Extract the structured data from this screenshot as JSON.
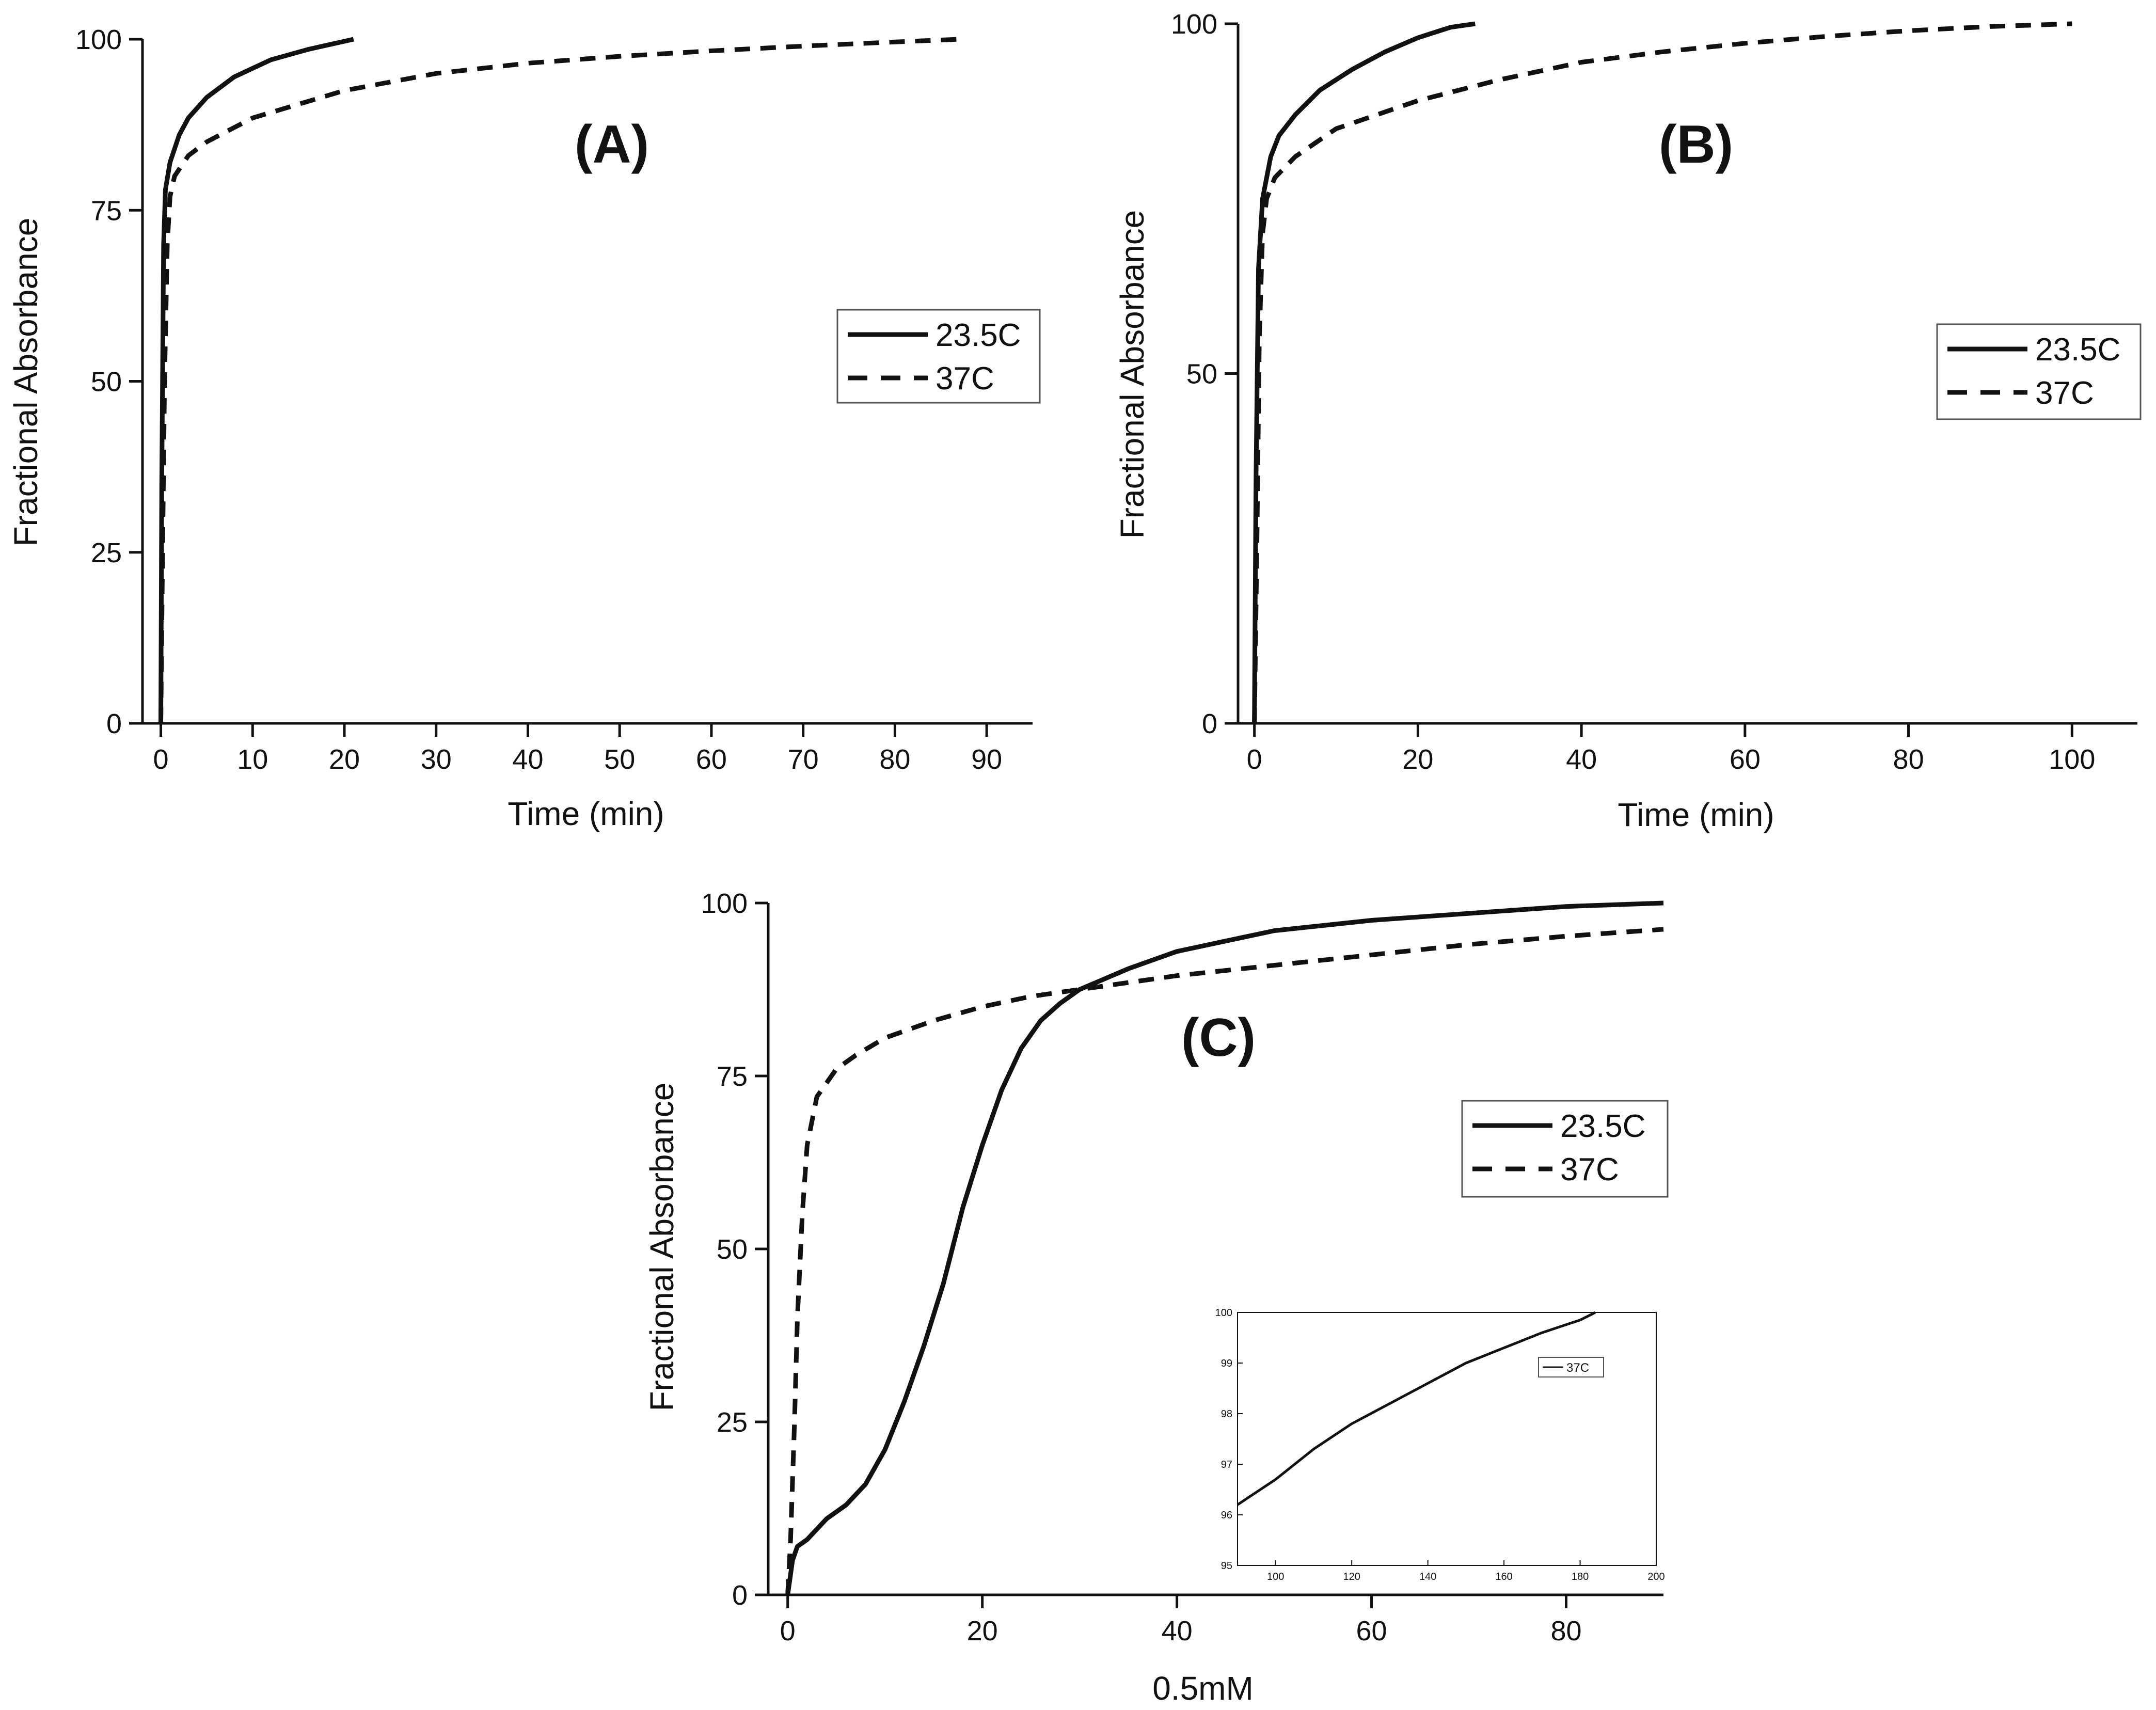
{
  "colors": {
    "line": "#111111",
    "background": "#ffffff",
    "legend_border": "#555555"
  },
  "chart_data": [
    {
      "type": "line",
      "panel": "A",
      "title": "(A)",
      "xlabel": "Time (min)",
      "ylabel": "Fractional Absorbance",
      "xlim": [
        -2,
        95
      ],
      "ylim": [
        0,
        100
      ],
      "xticks": [
        0,
        10,
        20,
        30,
        40,
        50,
        60,
        70,
        80,
        90
      ],
      "yticks": [
        0,
        25,
        50,
        75,
        100
      ],
      "legend": {
        "position": "center-right",
        "entries": [
          "23.5C",
          "37C"
        ]
      },
      "series": [
        {
          "name": "23.5C",
          "style": "solid",
          "x": [
            0,
            0.1,
            0.3,
            0.5,
            1,
            2,
            3,
            5,
            8,
            12,
            16,
            21
          ],
          "y": [
            0,
            35,
            70,
            78,
            82,
            86,
            88.5,
            91.5,
            94.5,
            97,
            98.5,
            100
          ]
        },
        {
          "name": "37C",
          "style": "dashed",
          "x": [
            0,
            0.15,
            0.4,
            0.7,
            1,
            1.5,
            3,
            5,
            10,
            20,
            30,
            40,
            50,
            60,
            70,
            80,
            87
          ],
          "y": [
            0,
            20,
            50,
            70,
            77,
            80,
            83,
            85,
            88.5,
            92.5,
            95,
            96.5,
            97.5,
            98.3,
            99,
            99.6,
            100
          ]
        }
      ]
    },
    {
      "type": "line",
      "panel": "B",
      "title": "(B)",
      "xlabel": "Time (min)",
      "ylabel": "Fractional Absorbance",
      "xlim": [
        -2,
        108
      ],
      "ylim": [
        0,
        100
      ],
      "xticks": [
        0,
        20,
        40,
        60,
        80,
        100
      ],
      "yticks": [
        0,
        50,
        100
      ],
      "legend": {
        "position": "center-right",
        "entries": [
          "23.5C",
          "37C"
        ]
      },
      "series": [
        {
          "name": "23.5C",
          "style": "solid",
          "x": [
            0,
            0.2,
            0.5,
            1,
            2,
            3,
            5,
            8,
            12,
            16,
            20,
            24,
            27
          ],
          "y": [
            0,
            35,
            65,
            75,
            81,
            84,
            87,
            90.5,
            93.5,
            96,
            98,
            99.5,
            100
          ]
        },
        {
          "name": "37C",
          "style": "dashed",
          "x": [
            0,
            0.3,
            0.6,
            1,
            1.5,
            2.5,
            5,
            10,
            20,
            30,
            40,
            50,
            60,
            70,
            80,
            90,
            100
          ],
          "y": [
            0,
            25,
            55,
            70,
            75,
            78,
            81,
            85,
            89,
            92,
            94.5,
            96,
            97.2,
            98.2,
            99,
            99.6,
            100
          ]
        }
      ]
    },
    {
      "type": "line",
      "panel": "C",
      "title": "(C)",
      "xlabel": "0.5mM",
      "ylabel": "Fractional Absorbance",
      "xlim": [
        -2,
        90
      ],
      "ylim": [
        0,
        100
      ],
      "xticks": [
        0,
        20,
        40,
        60,
        80
      ],
      "yticks": [
        0,
        25,
        50,
        75,
        100
      ],
      "legend": {
        "position": "center-right",
        "entries": [
          "23.5C",
          "37C"
        ]
      },
      "series": [
        {
          "name": "23.5C",
          "style": "solid",
          "x": [
            0,
            0.5,
            1,
            2,
            4,
            6,
            8,
            10,
            12,
            14,
            16,
            18,
            20,
            22,
            24,
            26,
            28,
            30,
            35,
            40,
            45,
            50,
            60,
            70,
            80,
            90
          ],
          "y": [
            0,
            5,
            7,
            8,
            11,
            13,
            16,
            21,
            28,
            36,
            45,
            56,
            65,
            73,
            79,
            83,
            85.5,
            87.5,
            90.5,
            93,
            94.5,
            96,
            97.5,
            98.5,
            99.5,
            100
          ]
        },
        {
          "name": "37C",
          "style": "dashed",
          "x": [
            0,
            0.3,
            0.7,
            1,
            1.5,
            2,
            3,
            5,
            7,
            10,
            15,
            20,
            25,
            30,
            40,
            50,
            60,
            70,
            80,
            90
          ],
          "y": [
            0,
            8,
            25,
            40,
            55,
            65,
            72,
            76,
            78,
            80.5,
            83,
            85,
            86.5,
            87.5,
            89.5,
            91,
            92.5,
            94,
            95.2,
            96.2
          ]
        }
      ],
      "inset": {
        "type": "line",
        "xlim": [
          90,
          200
        ],
        "ylim": [
          95,
          100
        ],
        "xticks": [
          100,
          120,
          140,
          160,
          180,
          200
        ],
        "yticks": [
          95,
          96,
          97,
          98,
          99,
          100
        ],
        "legend": {
          "entries": [
            "37C"
          ]
        },
        "series": [
          {
            "name": "37C",
            "style": "solid",
            "x": [
              90,
              100,
              110,
              120,
              130,
              140,
              150,
              160,
              170,
              180,
              184
            ],
            "y": [
              96.2,
              96.7,
              97.3,
              97.8,
              98.2,
              98.6,
              99.0,
              99.3,
              99.6,
              99.85,
              100
            ]
          }
        ]
      }
    }
  ]
}
